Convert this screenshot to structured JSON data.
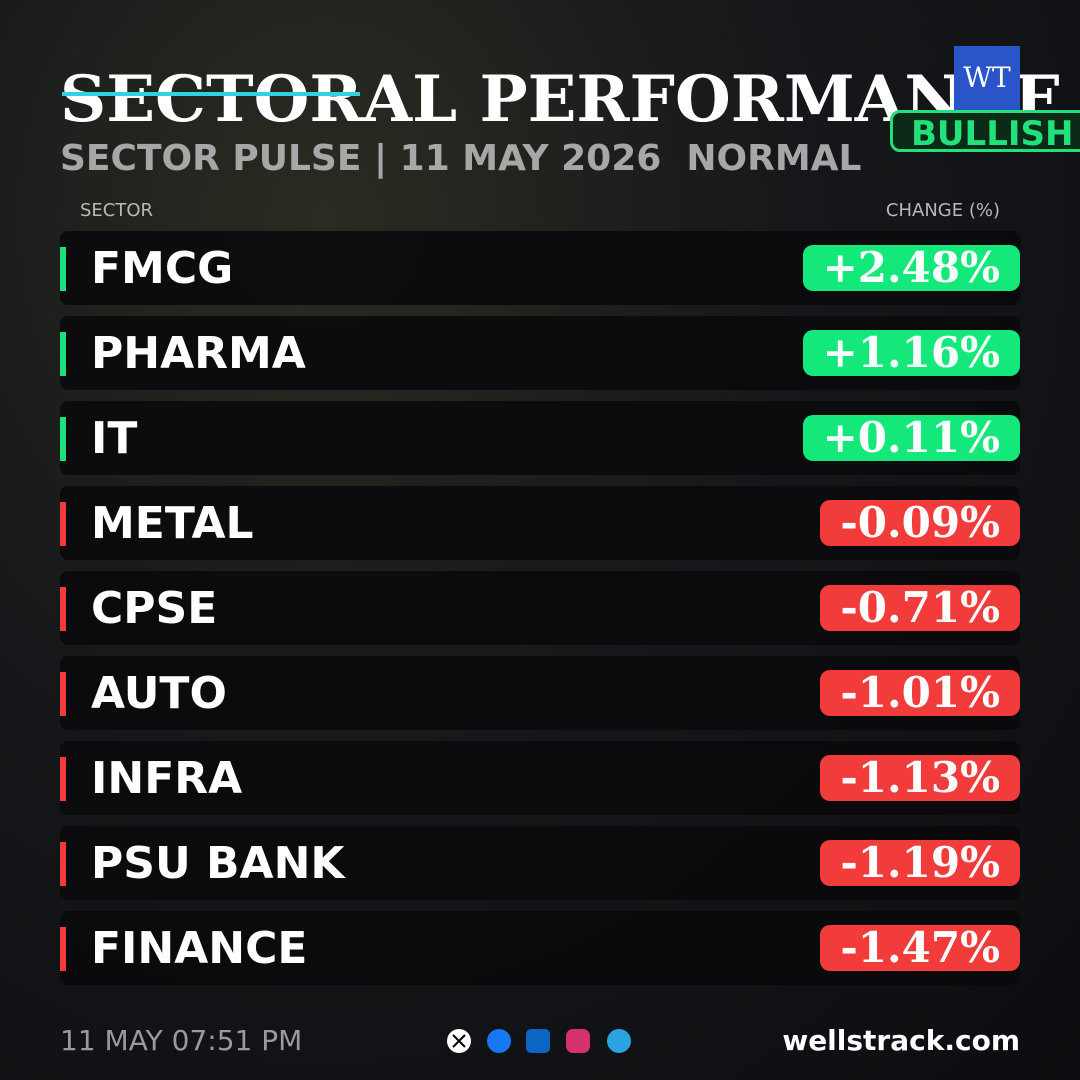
{
  "header": {
    "title": "SECTORAL PERFORMANCE ANALYSIS",
    "logo": "WT",
    "badge": "BULLISH",
    "subtitle": "SECTOR PULSE | 11 MAY 2026  NORMAL"
  },
  "table": {
    "columns": [
      "SECTOR",
      "CHANGE (%)"
    ],
    "rows": [
      [
        "FMCG",
        "+2.48%"
      ],
      [
        "PHARMA",
        "+1.16%"
      ],
      [
        "IT",
        "+0.11%"
      ],
      [
        "METAL",
        "-0.09%"
      ],
      [
        "CPSE",
        "-0.71%"
      ],
      [
        "AUTO",
        "-1.01%"
      ],
      [
        "INFRA",
        "-1.13%"
      ],
      [
        "PSU BANK",
        "-1.19%"
      ],
      [
        "FINANCE",
        "-1.47%"
      ]
    ]
  },
  "footer": {
    "timestamp": "11 MAY 07:51 PM",
    "website": "wellstrack.com"
  }
}
